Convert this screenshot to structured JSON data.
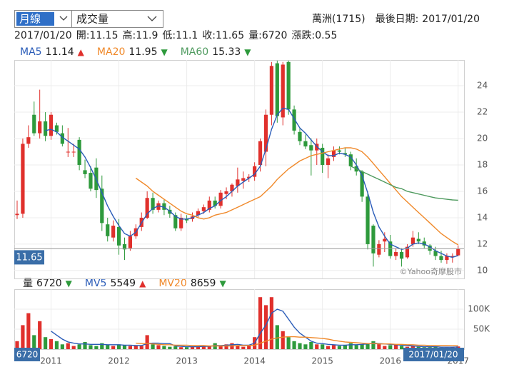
{
  "controls": {
    "period": "月線",
    "indicator": "成交量"
  },
  "stock": {
    "name": "萬洲(1715)",
    "last_date_label": "最後日期:",
    "last_date": "2017/01/20"
  },
  "quote": {
    "date": "2017/01/20",
    "fields": [
      {
        "label": "開:",
        "value": 11.15
      },
      {
        "label": "高:",
        "value": 11.9
      },
      {
        "label": "低:",
        "value": 11.1
      },
      {
        "label": "收:",
        "value": 11.65
      },
      {
        "label": "量:",
        "value": 6720
      },
      {
        "label": "漲跌:",
        "value": 0.55
      }
    ]
  },
  "chart_data": {
    "type": "candlestick",
    "watermark": "©Yahoo奇摩股市",
    "up_color": "#e0302c",
    "down_color": "#2e9a3c",
    "categories": [
      null,
      null,
      null,
      null,
      null,
      null,
      "2011",
      null,
      null,
      null,
      null,
      null,
      null,
      null,
      null,
      null,
      null,
      null,
      "2012",
      null,
      null,
      null,
      null,
      null,
      null,
      null,
      null,
      null,
      null,
      null,
      "2013",
      null,
      null,
      null,
      null,
      null,
      null,
      null,
      null,
      null,
      null,
      null,
      "2014",
      null,
      null,
      null,
      null,
      null,
      null,
      null,
      null,
      null,
      null,
      null,
      "2015",
      null,
      null,
      null,
      null,
      null,
      null,
      null,
      null,
      null,
      null,
      null,
      "2016",
      null,
      null,
      null,
      null,
      null,
      null,
      null,
      null,
      null,
      null,
      null,
      "2017"
    ],
    "open": [
      14.2,
      14.3,
      19.6,
      21.8,
      20.4,
      21.3,
      20.2,
      21.0,
      20.4,
      19.0,
      19.0,
      19.9,
      17.6,
      17.4,
      17.8,
      16.2,
      13.5,
      12.5,
      13.3,
      12.0,
      11.7,
      12.6,
      13.3,
      14.0,
      15.5,
      14.6,
      15.1,
      14.6,
      14.2,
      13.2,
      13.9,
      13.9,
      14.2,
      14.5,
      14.6,
      15.3,
      14.9,
      15.8,
      16.0,
      16.4,
      16.8,
      17.0,
      17.1,
      18.0,
      19.0,
      21.8,
      25.7,
      21.6,
      25.8,
      22.2,
      20.5,
      19.8,
      19.5,
      19.1,
      19.3,
      18.0,
      18.6,
      19.1,
      18.9,
      18.8,
      17.9,
      17.5,
      15.6,
      13.4,
      11.2,
      12.2,
      12.2,
      11.1,
      11.4,
      11.0,
      12.0,
      12.4,
      12.2,
      11.9,
      11.5,
      11.1,
      10.8,
      11.1,
      11.15
    ],
    "high": [
      15.3,
      20.0,
      21.0,
      22.8,
      23.7,
      22.0,
      22.0,
      21.2,
      21.0,
      20.8,
      19.6,
      20.1,
      18.4,
      17.9,
      18.5,
      17.2,
      14.0,
      13.8,
      13.9,
      12.5,
      13.0,
      13.5,
      14.4,
      16.0,
      15.9,
      15.3,
      15.4,
      14.9,
      14.4,
      14.3,
      14.2,
      14.4,
      14.7,
      15.0,
      15.6,
      15.6,
      16.1,
      16.3,
      16.6,
      17.8,
      17.5,
      17.3,
      18.2,
      20.0,
      22.2,
      25.8,
      25.9,
      25.8,
      25.9,
      22.5,
      20.8,
      20.3,
      20.0,
      20.0,
      19.6,
      18.8,
      19.4,
      19.4,
      19.3,
      19.0,
      18.5,
      17.6,
      16.0,
      13.5,
      12.3,
      12.9,
      12.7,
      11.7,
      11.7,
      12.0,
      13.0,
      12.9,
      12.5,
      12.0,
      11.8,
      11.5,
      11.3,
      11.3,
      11.9
    ],
    "low": [
      13.9,
      14.0,
      19.3,
      20.2,
      20.0,
      19.8,
      19.9,
      20.3,
      19.4,
      18.6,
      18.6,
      17.6,
      17.0,
      16.0,
      15.5,
      13.0,
      12.2,
      12.2,
      11.2,
      10.8,
      11.5,
      12.4,
      13.0,
      13.9,
      14.3,
      14.4,
      14.2,
      14.0,
      13.0,
      13.0,
      13.6,
      13.7,
      14.0,
      14.3,
      14.4,
      14.7,
      14.7,
      15.4,
      15.6,
      15.9,
      16.2,
      16.7,
      16.8,
      17.5,
      17.9,
      21.0,
      21.2,
      21.0,
      21.8,
      20.3,
      19.5,
      19.2,
      17.2,
      18.0,
      17.4,
      17.0,
      18.3,
      18.8,
      18.6,
      17.6,
      17.2,
      15.2,
      11.6,
      10.3,
      11.0,
      11.4,
      10.9,
      10.8,
      10.3,
      10.9,
      11.8,
      12.0,
      11.7,
      11.2,
      10.8,
      10.6,
      10.5,
      10.6,
      11.1
    ],
    "close": [
      14.3,
      19.6,
      20.1,
      20.4,
      21.3,
      20.2,
      21.8,
      20.5,
      19.6,
      19.0,
      19.0,
      18.0,
      17.3,
      16.2,
      16.1,
      13.6,
      12.6,
      13.4,
      11.9,
      11.6,
      12.6,
      13.2,
      14.0,
      15.5,
      14.6,
      15.1,
      14.6,
      14.3,
      13.2,
      14.0,
      13.8,
      14.1,
      14.5,
      14.8,
      15.3,
      14.9,
      15.9,
      16.0,
      16.5,
      16.9,
      17.0,
      17.1,
      17.9,
      19.8,
      21.8,
      25.5,
      21.7,
      25.6,
      22.2,
      20.6,
      19.8,
      19.4,
      19.1,
      19.6,
      18.0,
      18.5,
      19.1,
      19.0,
      18.8,
      17.9,
      17.5,
      15.6,
      12.0,
      11.3,
      12.0,
      12.4,
      11.1,
      11.4,
      10.9,
      11.8,
      12.5,
      12.2,
      11.9,
      11.5,
      11.1,
      10.8,
      11.1,
      11.1,
      11.65
    ],
    "ylim": [
      9.4,
      25.95
    ],
    "yticks": [
      10,
      12,
      14,
      16,
      18,
      20,
      22,
      24
    ],
    "series": [
      {
        "name": "MA5",
        "color": "#2a5cb8",
        "last": 11.14,
        "arrow": "▲",
        "arrow_color": "#e0302c",
        "values": [
          null,
          null,
          null,
          null,
          null,
          20.6,
          20.7,
          20.5,
          20.1,
          19.8,
          19.5,
          19.2,
          18.6,
          17.8,
          16.9,
          15.9,
          14.9,
          14.1,
          13.4,
          12.8,
          12.6,
          12.9,
          13.6,
          14.3,
          14.7,
          14.9,
          14.8,
          14.5,
          14.1,
          13.9,
          13.9,
          14.0,
          14.2,
          14.4,
          14.7,
          14.9,
          15.3,
          15.6,
          16.0,
          16.4,
          16.7,
          17.0,
          17.3,
          17.9,
          19.2,
          20.7,
          21.8,
          22.3,
          22.2,
          21.5,
          20.8,
          20.4,
          19.9,
          19.4,
          19.0,
          18.7,
          18.7,
          18.9,
          18.8,
          18.6,
          18.0,
          17.2,
          15.9,
          14.4,
          13.3,
          12.6,
          12.0,
          11.8,
          11.6,
          11.7,
          12.0,
          12.1,
          12.0,
          11.8,
          11.5,
          11.3,
          11.1,
          11.0,
          11.14
        ]
      },
      {
        "name": "MA20",
        "color": "#f0892a",
        "last": 11.95,
        "arrow": "▼",
        "arrow_color": "#2e9a3c",
        "values": [
          null,
          null,
          null,
          null,
          null,
          null,
          null,
          null,
          null,
          null,
          null,
          null,
          null,
          null,
          null,
          null,
          null,
          null,
          null,
          null,
          null,
          17.0,
          16.7,
          16.4,
          16.0,
          15.7,
          15.4,
          15.1,
          14.8,
          14.5,
          14.3,
          14.2,
          14.0,
          13.9,
          14.0,
          14.2,
          14.3,
          14.4,
          14.6,
          14.8,
          15.0,
          15.2,
          15.4,
          15.6,
          16.0,
          16.4,
          16.9,
          17.3,
          17.7,
          18.0,
          18.3,
          18.5,
          18.7,
          18.8,
          18.9,
          19.0,
          19.1,
          19.2,
          19.3,
          19.3,
          19.2,
          19.0,
          18.6,
          18.1,
          17.6,
          17.1,
          16.6,
          16.1,
          15.6,
          15.2,
          14.8,
          14.4,
          14.0,
          13.6,
          13.2,
          12.8,
          12.5,
          12.2,
          11.95
        ]
      },
      {
        "name": "MA60",
        "color": "#4e9a5e",
        "last": 15.33,
        "arrow": "▼",
        "arrow_color": "#2e9a3c",
        "values": [
          null,
          null,
          null,
          null,
          null,
          null,
          null,
          null,
          null,
          null,
          null,
          null,
          null,
          null,
          null,
          null,
          null,
          null,
          null,
          null,
          null,
          null,
          null,
          null,
          null,
          null,
          null,
          null,
          null,
          null,
          null,
          null,
          null,
          null,
          null,
          null,
          null,
          null,
          null,
          null,
          null,
          null,
          null,
          null,
          null,
          null,
          null,
          null,
          null,
          null,
          null,
          null,
          null,
          null,
          null,
          null,
          null,
          null,
          null,
          17.9,
          17.7,
          17.5,
          17.3,
          17.1,
          16.9,
          16.7,
          16.5,
          16.3,
          16.2,
          16.0,
          15.9,
          15.8,
          15.7,
          15.6,
          15.5,
          15.45,
          15.4,
          15.35,
          15.33
        ]
      }
    ],
    "volume": {
      "name": "量",
      "last": 6720,
      "arrow": "▼",
      "arrow_color": "#2e9a3c",
      "values": [
        20000,
        60000,
        90000,
        35000,
        70000,
        30000,
        25000,
        20000,
        12000,
        15000,
        8000,
        12000,
        18000,
        10000,
        8000,
        15000,
        10000,
        8000,
        12000,
        10000,
        8000,
        10000,
        8000,
        35000,
        12000,
        10000,
        8000,
        6000,
        7000,
        5000,
        5000,
        6000,
        6000,
        8000,
        7000,
        15000,
        8000,
        12000,
        15000,
        8000,
        6000,
        10000,
        30000,
        130000,
        110000,
        130000,
        60000,
        45000,
        30000,
        20000,
        15000,
        12000,
        18000,
        12000,
        12000,
        8000,
        10000,
        8000,
        10000,
        15000,
        10000,
        12000,
        15000,
        20000,
        15000,
        8000,
        10000,
        12000,
        8000,
        6000,
        8000,
        6000,
        5000,
        5000,
        6000,
        4000,
        4000,
        5000,
        6720
      ],
      "ylim": [
        0,
        150000
      ],
      "yticks": [
        {
          "value": 50000,
          "label": "50K"
        },
        {
          "value": 100000,
          "label": "100K"
        }
      ],
      "series": [
        {
          "name": "MV5",
          "color": "#2a5cb8",
          "last": 5549,
          "arrow": "▲",
          "arrow_color": "#e0302c",
          "values": [
            null,
            null,
            null,
            null,
            null,
            null,
            45000,
            35000,
            25000,
            18000,
            15000,
            13000,
            13000,
            12000,
            12000,
            12000,
            11000,
            11000,
            11000,
            10000,
            10000,
            9000,
            9000,
            14000,
            15000,
            15000,
            14000,
            14000,
            8000,
            7000,
            6000,
            6000,
            6000,
            7000,
            7000,
            9000,
            9000,
            10000,
            11000,
            12000,
            10000,
            10000,
            15000,
            40000,
            60000,
            90000,
            100000,
            95000,
            75000,
            55000,
            40000,
            30000,
            20000,
            15000,
            14000,
            12000,
            11000,
            10000,
            10000,
            11000,
            11000,
            12000,
            13000,
            15000,
            14000,
            13000,
            12000,
            11000,
            10000,
            9000,
            8000,
            7000,
            6000,
            6000,
            6000,
            5000,
            5000,
            5000,
            5549
          ]
        },
        {
          "name": "MV20",
          "color": "#f0892a",
          "last": 8659,
          "arrow": "▼",
          "arrow_color": "#2e9a3c",
          "values": [
            null,
            null,
            null,
            null,
            null,
            null,
            null,
            null,
            null,
            null,
            null,
            null,
            null,
            null,
            null,
            null,
            null,
            null,
            null,
            null,
            null,
            15000,
            14000,
            14000,
            13000,
            12000,
            11000,
            11000,
            10000,
            10000,
            10000,
            9000,
            9000,
            9000,
            8000,
            8000,
            8000,
            8000,
            8000,
            9000,
            9000,
            9000,
            10000,
            15000,
            20000,
            25000,
            28000,
            30000,
            31000,
            31000,
            30000,
            30000,
            29000,
            28000,
            27000,
            25000,
            22000,
            20000,
            18000,
            17000,
            16000,
            15000,
            14000,
            14000,
            13000,
            13000,
            13000,
            12000,
            12000,
            11000,
            11000,
            10000,
            10000,
            9000,
            9000,
            9000,
            9000,
            8800,
            8659
          ]
        }
      ]
    }
  }
}
